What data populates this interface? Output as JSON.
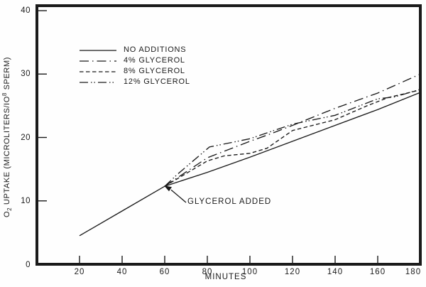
{
  "figure": {
    "background": "#fefefe",
    "ink": "#1a1a1a"
  },
  "axes": {
    "x_label": "MINUTES",
    "y_label_text": "O₂ UPTAKE (MICROLITERS/10⁸ SPERM)",
    "y_label_parts": {
      "pre": "O",
      "sub": "2",
      "mid": " UPTAKE (MICROLITERS/IO",
      "sup": "8",
      "post": " SPERM)"
    }
  },
  "annotation": {
    "label": "GLYCEROL ADDED"
  },
  "chart_data": {
    "type": "line",
    "title": "",
    "xlabel": "MINUTES",
    "ylabel": "O2 UPTAKE (MICROLITERS/10^8 SPERM)",
    "xlim": [
      0,
      180
    ],
    "ylim": [
      0,
      40
    ],
    "xticks": [
      20,
      40,
      60,
      80,
      100,
      120,
      140,
      160,
      180
    ],
    "yticks": [
      0,
      10,
      20,
      30,
      40
    ],
    "grid": false,
    "legend_position": "upper-left",
    "annotations": [
      {
        "text": "GLYCEROL ADDED",
        "at_x": 61,
        "at_y": 12.3
      }
    ],
    "series": [
      {
        "name": "NO ADDITIONS",
        "style": "solid",
        "points": [
          [
            20,
            4.5
          ],
          [
            40,
            8.4
          ],
          [
            60,
            12.3
          ],
          [
            80,
            14.5
          ],
          [
            100,
            16.9
          ],
          [
            120,
            19.4
          ],
          [
            140,
            21.9
          ],
          [
            160,
            24.4
          ],
          [
            180,
            27.1
          ]
        ]
      },
      {
        "name": "4% GLYCEROL",
        "style": "dash-dot",
        "points": [
          [
            60,
            12.3
          ],
          [
            80,
            16.8
          ],
          [
            100,
            19.4
          ],
          [
            110,
            20.6
          ],
          [
            120,
            21.9
          ],
          [
            140,
            24.6
          ],
          [
            160,
            27.0
          ],
          [
            180,
            30.0
          ]
        ]
      },
      {
        "name": "8% GLYCEROL",
        "style": "dashed",
        "points": [
          [
            60,
            12.3
          ],
          [
            80,
            16.3
          ],
          [
            88,
            17.1
          ],
          [
            100,
            17.5
          ],
          [
            108,
            18.3
          ],
          [
            120,
            21.1
          ],
          [
            140,
            22.8
          ],
          [
            155,
            25.0
          ],
          [
            165,
            26.3
          ],
          [
            180,
            27.5
          ]
        ]
      },
      {
        "name": "12% GLYCEROL",
        "style": "dash-dot-dot",
        "points": [
          [
            60,
            12.3
          ],
          [
            66,
            14.2
          ],
          [
            81,
            18.5
          ],
          [
            100,
            19.8
          ],
          [
            120,
            22.1
          ],
          [
            140,
            23.5
          ],
          [
            160,
            26.1
          ],
          [
            168,
            26.4
          ],
          [
            180,
            27.6
          ]
        ]
      }
    ]
  }
}
